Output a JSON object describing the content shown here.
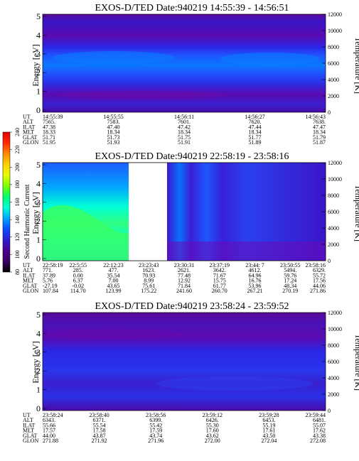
{
  "colorbar": {
    "label": "Second Harmonic Current",
    "ticks": [
      "80",
      "100",
      "120",
      "140",
      "160",
      "180",
      "200",
      "220",
      "240"
    ],
    "range": [
      80,
      240
    ],
    "colors": [
      "#000000",
      "#3a0060",
      "#4b0090",
      "#2a1fd0",
      "#0a4cff",
      "#00a6ff",
      "#00ffd6",
      "#00ff70",
      "#7dff00",
      "#e6ff00",
      "#ffd000",
      "#ff8a00",
      "#ff2a00",
      "#e00000"
    ]
  },
  "panels": [
    {
      "title": "EXOS-D/TED  Date:940219  14:55:39 - 14:56:51",
      "ylabel": "Energy [eV]",
      "y2label": "Temperature [K]",
      "yticks": [
        "0",
        "1",
        "2",
        "3",
        "4",
        "5"
      ],
      "y2ticks": [
        "0",
        "2000",
        "4000",
        "6000",
        "8000",
        "10000",
        "12000"
      ],
      "rows": [
        {
          "label": "UT",
          "values": [
            "14:55:39",
            "14:55:55",
            "14:56:11",
            "14:56:27",
            "14:56:43"
          ]
        },
        {
          "label": "ALT",
          "values": [
            "7565.",
            "7583.",
            "7601.",
            "7620.",
            "7638."
          ]
        },
        {
          "label": "ILAT",
          "values": [
            "47.38",
            "47.40",
            "47.42",
            "47.44",
            "47.47"
          ]
        },
        {
          "label": "MLT",
          "values": [
            "18.33",
            "18.34",
            "18.34",
            "18.34",
            "18.34"
          ]
        },
        {
          "label": "GLAT",
          "values": [
            "51.71",
            "51.73",
            "51.75",
            "51.77",
            "51.79"
          ]
        },
        {
          "label": "GLON",
          "values": [
            "51.95",
            "51.93",
            "51.91",
            "51.89",
            "51.87"
          ]
        }
      ]
    },
    {
      "title": "EXOS-D/TED  Date:940219  22:58:19 - 23:58:16",
      "ylabel": "Energy [eV]",
      "y2label": "Temperature [K]",
      "yticks": [
        "0",
        "1",
        "2",
        "3",
        "4",
        "5"
      ],
      "y2ticks": [
        "0",
        "2000",
        "4000",
        "6000",
        "8000",
        "10000",
        "12000"
      ],
      "rows": [
        {
          "label": "UT",
          "values": [
            "22:58:19",
            "22:5:55",
            "22:12:23",
            "23:23:43",
            "23:30:31",
            "23:37:19",
            "23:44: 7",
            "23:50:55",
            "23:58:16"
          ]
        },
        {
          "label": "ALT",
          "values": [
            "771.",
            "285.",
            "477.",
            "1623.",
            "2621.",
            "3642.",
            "4612.",
            "5494.",
            "6329."
          ]
        },
        {
          "label": "ILAT",
          "values": [
            "37.89",
            "0.00",
            "35.54",
            "70.93",
            "77.48",
            "71.67",
            "64.96",
            "59.76",
            "55.72"
          ]
        },
        {
          "label": "MLT",
          "values": [
            "5.76",
            "6.37",
            "7.00",
            "8.99",
            "12.92",
            "15.75",
            "16.76",
            "17.24",
            "17.56"
          ]
        },
        {
          "label": "GLAT",
          "values": [
            "-27.19",
            "-0.02",
            "43.65",
            "75.61",
            "71.84",
            "61.77",
            "53.96",
            "48.34",
            "44.06"
          ]
        },
        {
          "label": "GLON",
          "values": [
            "107.84",
            "114.70",
            "123.99",
            "175.22",
            "241.60",
            "260.70",
            "267.21",
            "270.19",
            "271.86"
          ]
        }
      ]
    },
    {
      "title": "EXOS-D/TED  Date:940219  23:58:24 - 23:59:52",
      "ylabel": "Energy [eV]",
      "y2label": "Temperature [K]",
      "yticks": [
        "0",
        "1",
        "2",
        "3",
        "4",
        "5"
      ],
      "y2ticks": [
        "0",
        "2000",
        "4000",
        "6000",
        "8000",
        "10000",
        "12000"
      ],
      "rows": [
        {
          "label": "UT",
          "values": [
            "23:58:24",
            "23:58:40",
            "23:58:56",
            "23:59:12",
            "23:59:28",
            "23:59:44"
          ]
        },
        {
          "label": "ALT",
          "values": [
            "6343.",
            "6371.",
            "6399.",
            "6426.",
            "6453.",
            "6481."
          ]
        },
        {
          "label": "ILAT",
          "values": [
            "55.66",
            "55.54",
            "55.42",
            "55.30",
            "55.19",
            "55.07"
          ]
        },
        {
          "label": "MLT",
          "values": [
            "17.57",
            "17.58",
            "17.59",
            "17.60",
            "17.61",
            "17.62"
          ]
        },
        {
          "label": "GLAT",
          "values": [
            "44.00",
            "43.87",
            "43.74",
            "43.62",
            "43.50",
            "43.38"
          ]
        },
        {
          "label": "GLON",
          "values": [
            "271.88",
            "271.92",
            "271.96",
            "272.00",
            "272.04",
            "272.08"
          ]
        }
      ]
    }
  ],
  "chart_data": [
    {
      "type": "heatmap",
      "title": "EXOS-D/TED  Date:940219  14:55:39 - 14:56:51",
      "ylabel": "Energy [eV]",
      "y2label": "Temperature [K]",
      "ylim": [
        0,
        5
      ],
      "y2lim": [
        0,
        12000
      ],
      "x": [
        "14:55:39",
        "14:55:55",
        "14:56:11",
        "14:56:27",
        "14:56:43"
      ],
      "bands": [
        {
          "energy_range": [
            0.0,
            0.6
          ],
          "level": 0.22
        },
        {
          "energy_range": [
            0.6,
            1.8
          ],
          "level": 0.18
        },
        {
          "energy_range": [
            1.8,
            2.3
          ],
          "level": 0.34
        },
        {
          "energy_range": [
            2.3,
            2.8
          ],
          "level": 0.46
        },
        {
          "energy_range": [
            2.8,
            3.3
          ],
          "level": 0.34
        },
        {
          "energy_range": [
            3.3,
            4.1
          ],
          "level": 0.26
        },
        {
          "energy_range": [
            4.1,
            5.0
          ],
          "level": 0.16
        }
      ]
    },
    {
      "type": "heatmap",
      "title": "EXOS-D/TED  Date:940219  22:58:19 - 23:58:16",
      "ylabel": "Energy [eV]",
      "y2label": "Temperature [K]",
      "ylim": [
        0,
        5
      ],
      "y2lim": [
        0,
        12000
      ],
      "x": [
        "22:58:19",
        "22:5:55",
        "22:12:23",
        "23:23:43",
        "23:30:31",
        "23:37:19",
        "23:44: 7",
        "23:50:55",
        "23:58:16"
      ],
      "data_gap": [
        "22:12:23",
        "23:23:43"
      ],
      "segments": [
        {
          "x_range": [
            "22:58:19",
            "22:12:23"
          ],
          "level_low_energy": 0.75,
          "level_high_energy": 0.55
        },
        {
          "x_range": [
            "23:23:43",
            "23:58:16"
          ],
          "level_low_energy": 0.35,
          "level_high_energy": 0.28
        }
      ]
    },
    {
      "type": "heatmap",
      "title": "EXOS-D/TED  Date:940219  23:58:24 - 23:59:52",
      "ylabel": "Energy [eV]",
      "y2label": "Temperature [K]",
      "ylim": [
        0,
        5
      ],
      "y2lim": [
        0,
        12000
      ],
      "x": [
        "23:58:24",
        "23:58:40",
        "23:58:56",
        "23:59:12",
        "23:59:28",
        "23:59:44"
      ],
      "bands": [
        {
          "energy_range": [
            0.0,
            0.8
          ],
          "level": 0.2
        },
        {
          "energy_range": [
            0.8,
            1.8
          ],
          "level": 0.28
        },
        {
          "energy_range": [
            1.8,
            3.5
          ],
          "level": 0.24
        },
        {
          "energy_range": [
            3.5,
            5.0
          ],
          "level": 0.16
        }
      ]
    }
  ]
}
